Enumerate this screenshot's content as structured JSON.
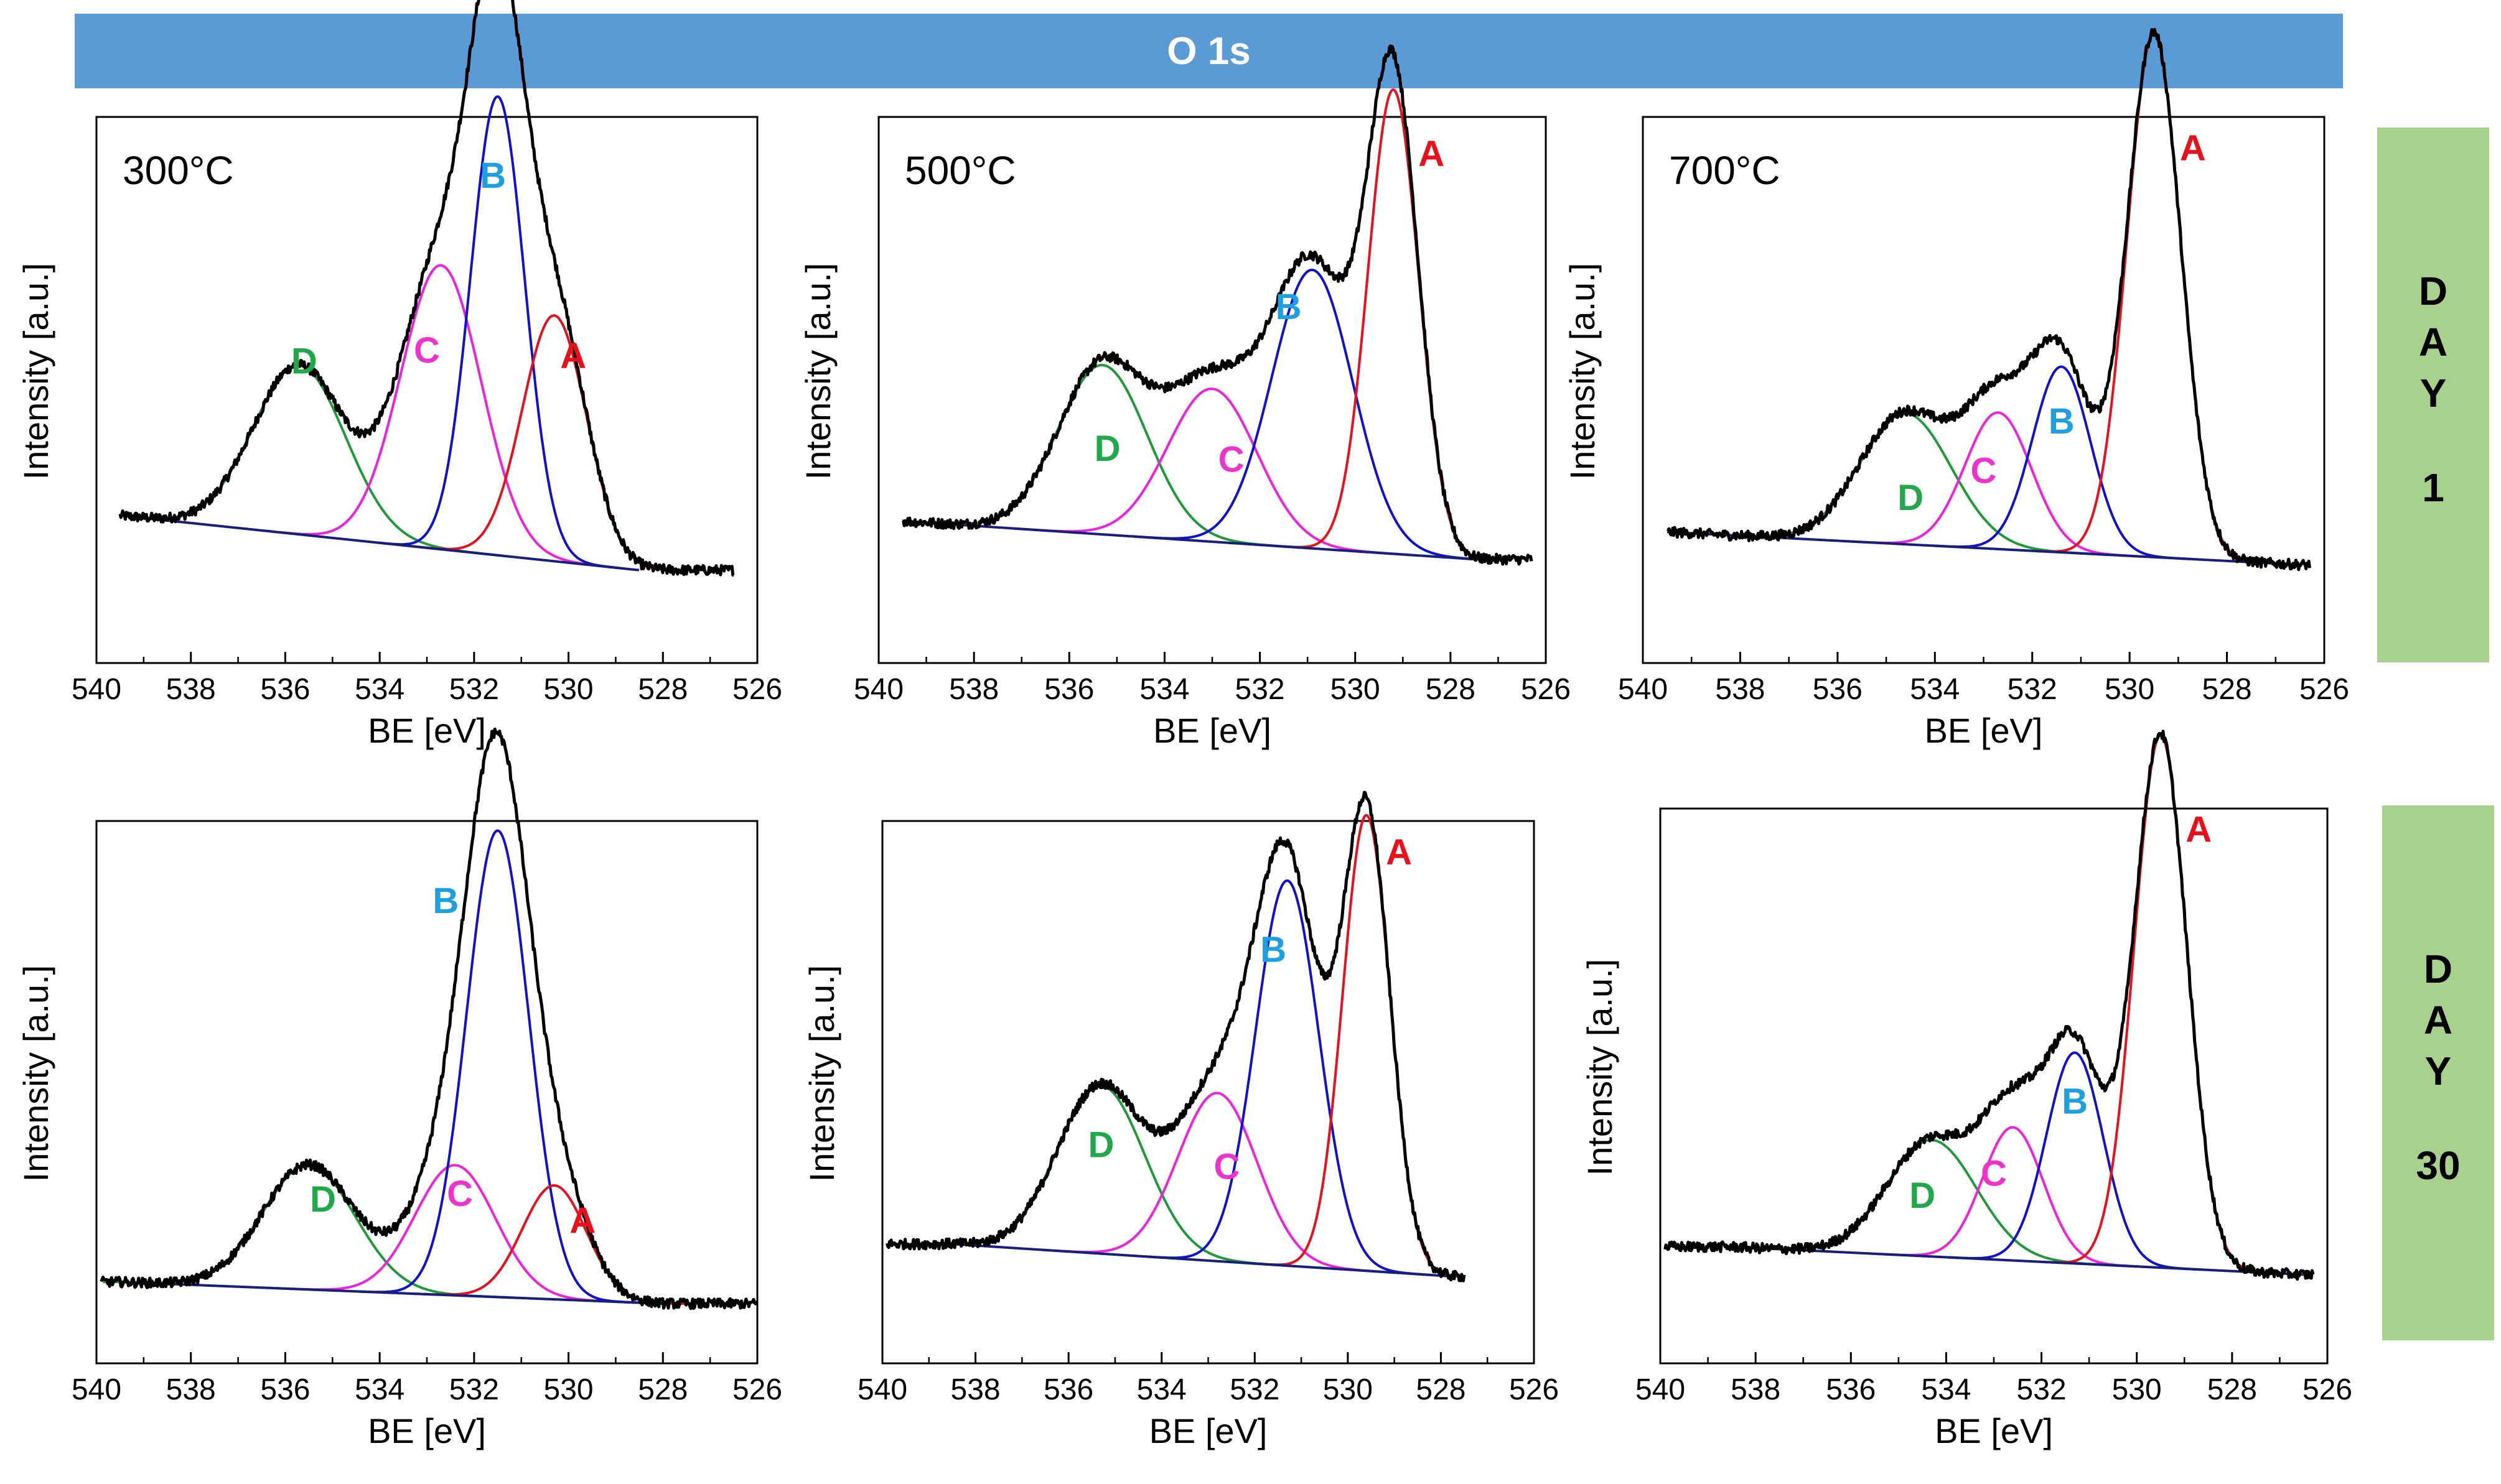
{
  "title": "O 1s",
  "day_labels": [
    {
      "letters": [
        "D",
        "A",
        "Y"
      ],
      "number": "1"
    },
    {
      "letters": [
        "D",
        "A",
        "Y"
      ],
      "number": "30"
    }
  ],
  "colors": {
    "A": "#e8101a",
    "B": "#1010d0",
    "C": "#ee22dd",
    "D": "#1e9a3a",
    "baseline": "#16207a",
    "envelope": "#000000",
    "label_A": "#e8101a",
    "label_B": "#1ea0e0",
    "label_C": "#ee33cc",
    "label_D": "#20a84a"
  },
  "chart_data": [
    {
      "type": "line",
      "day": "DAY 1",
      "temperature": "300°C",
      "xlabel": "BE [eV]",
      "ylabel": "Intensity [a.u.]",
      "xlim": [
        540,
        526
      ],
      "xticks": [
        540,
        538,
        536,
        534,
        532,
        530,
        528,
        526
      ],
      "ylim": [
        0,
        1.0
      ],
      "x_range": [
        539.5,
        526.5
      ],
      "baseline": {
        "x": [
          539.5,
          528.5
        ],
        "y": [
          0.27,
          0.17
        ]
      },
      "components": [
        {
          "name": "A",
          "center": 530.3,
          "fwhm": 1.6,
          "height": 0.45
        },
        {
          "name": "B",
          "center": 531.5,
          "fwhm": 1.35,
          "height": 0.84
        },
        {
          "name": "C",
          "center": 532.7,
          "fwhm": 2.0,
          "height": 0.52
        },
        {
          "name": "D",
          "center": 535.7,
          "fwhm": 2.3,
          "height": 0.31
        }
      ],
      "labels": [
        {
          "name": "D",
          "x": 535.6,
          "y": 0.53
        },
        {
          "name": "C",
          "x": 533.0,
          "y": 0.55
        },
        {
          "name": "B",
          "x": 531.6,
          "y": 0.87
        },
        {
          "name": "A",
          "x": 529.9,
          "y": 0.54
        }
      ]
    },
    {
      "type": "line",
      "day": "DAY 1",
      "temperature": "500°C",
      "xlabel": "BE [eV]",
      "ylabel": "Intensity [a.u.]",
      "xlim": [
        540,
        526
      ],
      "xticks": [
        540,
        538,
        536,
        534,
        532,
        530,
        528,
        526
      ],
      "ylim": [
        0,
        1.0
      ],
      "x_range": [
        539.5,
        526.3
      ],
      "baseline": {
        "x": [
          539.5,
          527.5
        ],
        "y": [
          0.26,
          0.19
        ]
      },
      "components": [
        {
          "name": "A",
          "center": 529.2,
          "fwhm": 1.25,
          "height": 0.85
        },
        {
          "name": "B",
          "center": 530.9,
          "fwhm": 2.0,
          "height": 0.51
        },
        {
          "name": "C",
          "center": 533.0,
          "fwhm": 2.2,
          "height": 0.28
        },
        {
          "name": "D",
          "center": 535.3,
          "fwhm": 2.2,
          "height": 0.31
        }
      ],
      "labels": [
        {
          "name": "D",
          "x": 535.2,
          "y": 0.37
        },
        {
          "name": "C",
          "x": 532.6,
          "y": 0.35
        },
        {
          "name": "B",
          "x": 531.4,
          "y": 0.63
        },
        {
          "name": "A",
          "x": 528.4,
          "y": 0.91
        }
      ]
    },
    {
      "type": "line",
      "day": "DAY 1",
      "temperature": "700°C",
      "xlabel": "BE [eV]",
      "ylabel": "Intensity [a.u.]",
      "xlim": [
        540,
        526
      ],
      "xticks": [
        540,
        538,
        536,
        534,
        532,
        530,
        528,
        526
      ],
      "ylim": [
        0,
        1.0
      ],
      "x_range": [
        539.5,
        526.3
      ],
      "baseline": {
        "x": [
          539.5,
          526.5
        ],
        "y": [
          0.24,
          0.18
        ]
      },
      "components": [
        {
          "name": "A",
          "center": 529.5,
          "fwhm": 1.3,
          "height": 0.96
        },
        {
          "name": "B",
          "center": 531.4,
          "fwhm": 1.4,
          "height": 0.34
        },
        {
          "name": "C",
          "center": 532.7,
          "fwhm": 1.6,
          "height": 0.25
        },
        {
          "name": "D",
          "center": 534.6,
          "fwhm": 2.2,
          "height": 0.24
        }
      ],
      "labels": [
        {
          "name": "D",
          "x": 534.5,
          "y": 0.28
        },
        {
          "name": "C",
          "x": 533.0,
          "y": 0.33
        },
        {
          "name": "B",
          "x": 531.4,
          "y": 0.42
        },
        {
          "name": "A",
          "x": 528.7,
          "y": 0.92
        }
      ]
    },
    {
      "type": "line",
      "day": "DAY 30",
      "temperature": "",
      "xlabel": "BE [eV]",
      "ylabel": "Intensity [a.u.]",
      "xlim": [
        540,
        526
      ],
      "xticks": [
        540,
        538,
        536,
        534,
        532,
        530,
        528,
        526
      ],
      "ylim": [
        0,
        1.0
      ],
      "x_range": [
        539.9,
        526.0
      ],
      "baseline": {
        "x": [
          539.5,
          528.0
        ],
        "y": [
          0.15,
          0.11
        ]
      },
      "components": [
        {
          "name": "A",
          "center": 530.3,
          "fwhm": 1.6,
          "height": 0.21
        },
        {
          "name": "B",
          "center": 531.5,
          "fwhm": 1.55,
          "height": 0.86
        },
        {
          "name": "C",
          "center": 532.4,
          "fwhm": 2.0,
          "height": 0.24
        },
        {
          "name": "D",
          "center": 535.5,
          "fwhm": 2.3,
          "height": 0.23
        }
      ],
      "labels": [
        {
          "name": "D",
          "x": 535.2,
          "y": 0.28
        },
        {
          "name": "C",
          "x": 532.3,
          "y": 0.29
        },
        {
          "name": "B",
          "x": 532.6,
          "y": 0.83
        },
        {
          "name": "A",
          "x": 529.7,
          "y": 0.24
        }
      ]
    },
    {
      "type": "line",
      "day": "DAY 30",
      "temperature": "",
      "xlabel": "BE [eV]",
      "ylabel": "Intensity [a.u.]",
      "xlim": [
        540,
        526
      ],
      "xticks": [
        540,
        538,
        536,
        534,
        532,
        530,
        528,
        526
      ],
      "ylim": [
        0,
        1.0
      ],
      "x_range": [
        539.9,
        527.5
      ],
      "baseline": {
        "x": [
          538.5,
          527.7
        ],
        "y": [
          0.22,
          0.16
        ]
      },
      "components": [
        {
          "name": "A",
          "center": 529.6,
          "fwhm": 1.2,
          "height": 0.84
        },
        {
          "name": "B",
          "center": 531.3,
          "fwhm": 1.6,
          "height": 0.71
        },
        {
          "name": "C",
          "center": 532.8,
          "fwhm": 2.0,
          "height": 0.31
        },
        {
          "name": "D",
          "center": 535.3,
          "fwhm": 2.2,
          "height": 0.31
        }
      ],
      "labels": [
        {
          "name": "D",
          "x": 535.3,
          "y": 0.38
        },
        {
          "name": "C",
          "x": 532.6,
          "y": 0.34
        },
        {
          "name": "B",
          "x": 531.6,
          "y": 0.74
        },
        {
          "name": "A",
          "x": 528.9,
          "y": 0.92
        }
      ]
    },
    {
      "type": "line",
      "day": "DAY 30",
      "temperature": "",
      "xlabel": "BE [eV]",
      "ylabel": "Intensity [a.u.]",
      "xlim": [
        540,
        526
      ],
      "xticks": [
        540,
        538,
        536,
        534,
        532,
        530,
        528,
        526
      ],
      "ylim": [
        0,
        1.0
      ],
      "x_range": [
        539.9,
        526.3
      ],
      "baseline": {
        "x": [
          538.5,
          526.5
        ],
        "y": [
          0.21,
          0.16
        ]
      },
      "components": [
        {
          "name": "A",
          "center": 529.5,
          "fwhm": 1.3,
          "height": 0.96
        },
        {
          "name": "B",
          "center": 531.3,
          "fwhm": 1.4,
          "height": 0.38
        },
        {
          "name": "C",
          "center": 532.6,
          "fwhm": 1.5,
          "height": 0.24
        },
        {
          "name": "D",
          "center": 534.3,
          "fwhm": 2.2,
          "height": 0.21
        }
      ],
      "labels": [
        {
          "name": "D",
          "x": 534.5,
          "y": 0.28
        },
        {
          "name": "C",
          "x": 533.0,
          "y": 0.32
        },
        {
          "name": "B",
          "x": 531.3,
          "y": 0.45
        },
        {
          "name": "A",
          "x": 528.7,
          "y": 0.94
        }
      ]
    }
  ]
}
